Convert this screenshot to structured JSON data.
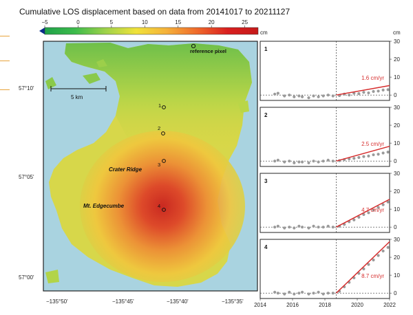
{
  "title": "Cumulative LOS displacement based on data from 20141017 to 20211127",
  "colorbar": {
    "ticks": [
      -5,
      0,
      5,
      10,
      15,
      20,
      25
    ],
    "range": [
      -5,
      27
    ],
    "unit": "cm",
    "colors": [
      "#1fa24a",
      "#3dbb4b",
      "#9fd24a",
      "#f0e23a",
      "#f5b13a",
      "#ef6a2b",
      "#d91f1f",
      "#c51a1a"
    ]
  },
  "map": {
    "labels": {
      "reference": "reference pixel",
      "scale": "5 km",
      "crater": "Crater Ridge",
      "edgecumbe": "Mt. Edgecumbe"
    },
    "point_labels": [
      "1",
      "2",
      "3",
      "4"
    ],
    "lat_ticks": [
      "57°10'",
      "57°05'",
      "57°00'"
    ],
    "lon_ticks": [
      "−135°50'",
      "−135°45'",
      "−135°40'",
      "−135°35'"
    ],
    "colors": {
      "water": "#a9d3e0",
      "land_low": "#c2d94c",
      "land_mid": "#e8d640",
      "uplift_core": "#cf1f1f"
    }
  },
  "chart_data": {
    "type": "scatter",
    "title": "",
    "xlabel": "",
    "ylabel": "cm",
    "xlim": [
      2014,
      2022
    ],
    "ylim": [
      -3,
      30
    ],
    "x_ticks": [
      2014,
      2016,
      2018,
      2020,
      2022
    ],
    "y_ticks": [
      0,
      10,
      20,
      30
    ],
    "onset_year": 2018.7,
    "grid": false,
    "points_color": "#9a9a9a",
    "fit_color": "#d62c2c",
    "panels": [
      {
        "id": "1",
        "rate_label": "1.6 cm/yr",
        "rate": 1.6,
        "x": [
          2014.9,
          2015.1,
          2015.5,
          2015.8,
          2016.1,
          2016.4,
          2016.6,
          2017.0,
          2017.3,
          2017.6,
          2017.9,
          2018.2,
          2018.5,
          2018.9,
          2019.2,
          2019.5,
          2019.8,
          2020.1,
          2020.4,
          2020.7,
          2021.0,
          2021.3,
          2021.6,
          2021.9
        ],
        "y": [
          0.5,
          1.0,
          -0.5,
          0.0,
          -1.0,
          -0.5,
          -1.0,
          -1.5,
          -0.5,
          -1.0,
          -0.5,
          0.0,
          -0.5,
          -0.3,
          0.5,
          0.0,
          1.0,
          0.8,
          1.5,
          1.2,
          2.0,
          2.2,
          2.8,
          3.0
        ]
      },
      {
        "id": "2",
        "rate_label": "2.5 cm/yr",
        "rate": 2.5,
        "x": [
          2014.9,
          2015.1,
          2015.5,
          2015.8,
          2016.1,
          2016.4,
          2016.6,
          2017.0,
          2017.3,
          2017.6,
          2017.9,
          2018.2,
          2018.5,
          2018.9,
          2019.2,
          2019.5,
          2019.8,
          2020.1,
          2020.4,
          2020.7,
          2021.0,
          2021.3,
          2021.6,
          2021.9
        ],
        "y": [
          0.0,
          0.5,
          -0.5,
          0.0,
          -1.0,
          -0.5,
          -0.5,
          -1.0,
          0.0,
          -0.5,
          0.0,
          0.5,
          0.0,
          0.2,
          0.8,
          1.2,
          1.5,
          2.0,
          2.5,
          2.8,
          3.5,
          3.8,
          4.5,
          5.0
        ]
      },
      {
        "id": "3",
        "rate_label": "4.7 cm/yr",
        "rate": 4.7,
        "x": [
          2014.9,
          2015.1,
          2015.5,
          2015.8,
          2016.1,
          2016.4,
          2016.6,
          2017.0,
          2017.3,
          2017.6,
          2017.9,
          2018.2,
          2018.5,
          2018.9,
          2019.2,
          2019.5,
          2019.8,
          2020.1,
          2020.4,
          2020.7,
          2021.0,
          2021.3,
          2021.6,
          2021.9
        ],
        "y": [
          0.0,
          0.5,
          -0.5,
          0.0,
          -0.5,
          0.5,
          0.0,
          -0.5,
          0.5,
          0.0,
          0.0,
          0.5,
          0.0,
          0.5,
          1.5,
          3.0,
          4.0,
          5.5,
          7.0,
          8.0,
          9.5,
          11.0,
          12.5,
          14.0
        ]
      },
      {
        "id": "4",
        "rate_label": "8.7 cm/yr",
        "rate": 8.7,
        "x": [
          2014.9,
          2015.1,
          2015.5,
          2015.8,
          2016.1,
          2016.4,
          2016.6,
          2017.0,
          2017.3,
          2017.6,
          2017.9,
          2018.2,
          2018.5,
          2018.9,
          2019.2,
          2019.5,
          2019.8,
          2020.1,
          2020.4,
          2020.7,
          2021.0,
          2021.3,
          2021.6,
          2021.9
        ],
        "y": [
          0.5,
          0.0,
          -0.5,
          0.5,
          -0.5,
          0.0,
          0.5,
          -0.5,
          0.0,
          0.5,
          -0.5,
          0.0,
          0.0,
          1.0,
          3.5,
          6.0,
          8.5,
          11.0,
          13.5,
          16.0,
          18.5,
          21.0,
          23.5,
          25.5
        ]
      }
    ]
  }
}
